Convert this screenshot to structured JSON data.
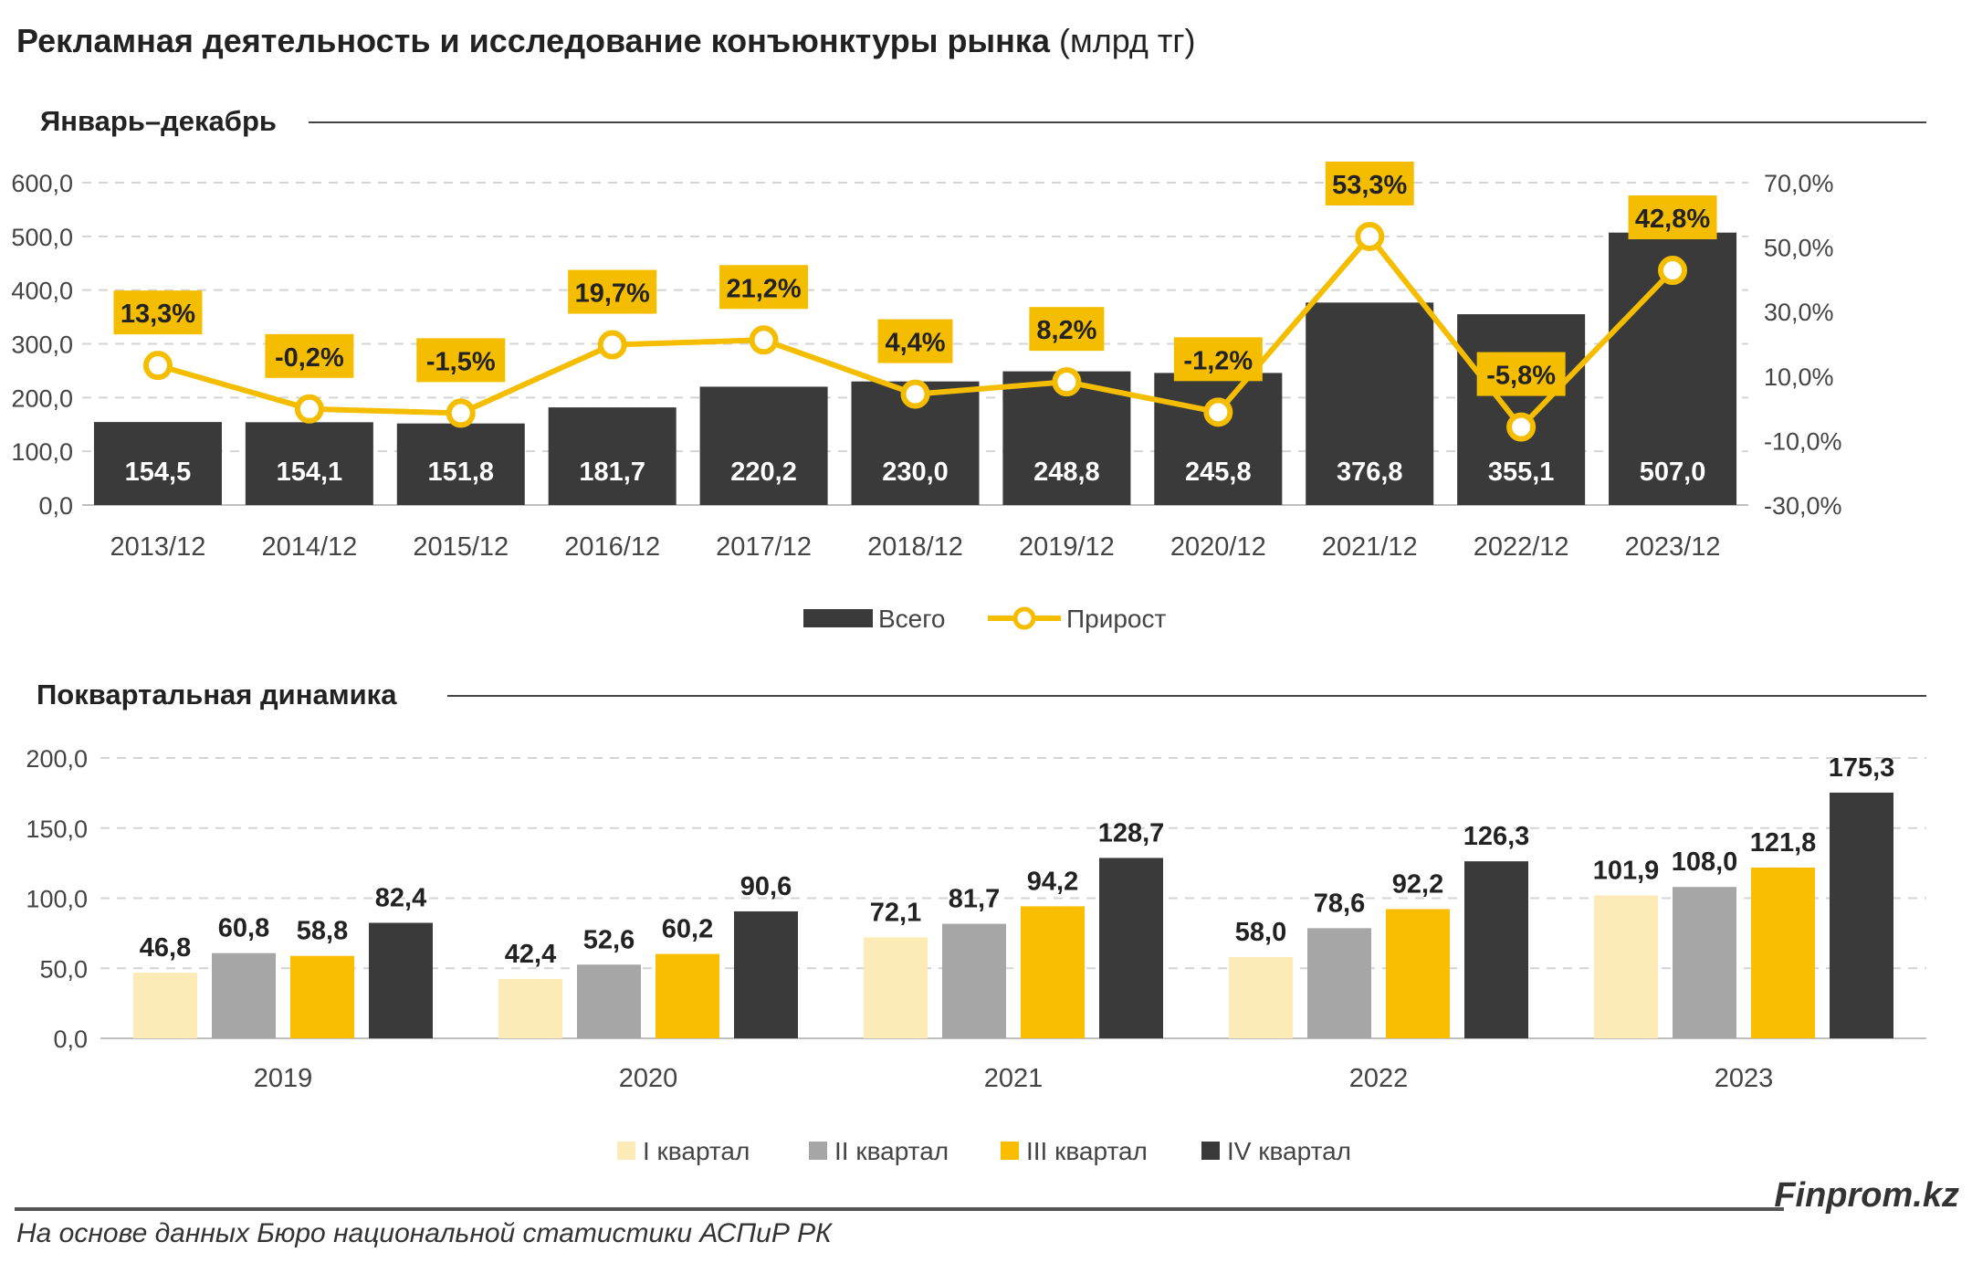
{
  "title": {
    "main": "Рекламная деятельность и исследование конъюнктуры рынка",
    "unit": "(млрд тг)"
  },
  "chart_data": [
    {
      "type": "bar",
      "subtitle": "Январь–декабрь",
      "categories": [
        "2013/12",
        "2014/12",
        "2015/12",
        "2016/12",
        "2017/12",
        "2018/12",
        "2019/12",
        "2020/12",
        "2021/12",
        "2022/12",
        "2023/12"
      ],
      "series": [
        {
          "name": "Всего",
          "type": "bar",
          "axis": "left",
          "color": "#3a3a3a",
          "values": [
            154.5,
            154.1,
            151.8,
            181.7,
            220.2,
            230.0,
            248.8,
            245.8,
            376.8,
            355.1,
            507.0
          ],
          "labels": [
            "154,5",
            "154,1",
            "151,8",
            "181,7",
            "220,2",
            "230,0",
            "248,8",
            "245,8",
            "376,8",
            "355,1",
            "507,0"
          ]
        },
        {
          "name": "Прирост",
          "type": "line",
          "axis": "right",
          "color": "#f5bd00",
          "values": [
            13.3,
            -0.2,
            -1.5,
            19.7,
            21.2,
            4.4,
            8.2,
            -1.2,
            53.3,
            -5.8,
            42.8
          ],
          "labels": [
            "13,3%",
            "-0,2%",
            "-1,5%",
            "19,7%",
            "21,2%",
            "4,4%",
            "8,2%",
            "-1,2%",
            "53,3%",
            "-5,8%",
            "42,8%"
          ]
        }
      ],
      "ylim": [
        0,
        600
      ],
      "yticks": [
        "0,0",
        "100,0",
        "200,0",
        "300,0",
        "400,0",
        "500,0",
        "600,0"
      ],
      "y2lim": [
        -30,
        70
      ],
      "y2ticks": [
        "-30,0%",
        "-10,0%",
        "10,0%",
        "30,0%",
        "50,0%",
        "70,0%"
      ],
      "legend": [
        "Всего",
        "Прирост"
      ],
      "legend_position": "bottom",
      "grid": true
    },
    {
      "type": "bar",
      "subtitle": "Поквартальная динамика",
      "categories": [
        "2019",
        "2020",
        "2021",
        "2022",
        "2023"
      ],
      "series": [
        {
          "name": "I квартал",
          "color": "#fcebb6",
          "values": [
            46.8,
            42.4,
            72.1,
            58.0,
            101.9
          ],
          "labels": [
            "46,8",
            "42,4",
            "72,1",
            "58,0",
            "101,9"
          ]
        },
        {
          "name": "II квартал",
          "color": "#a6a6a6",
          "values": [
            60.8,
            52.6,
            81.7,
            78.6,
            108.0
          ],
          "labels": [
            "60,8",
            "52,6",
            "81,7",
            "78,6",
            "108,0"
          ]
        },
        {
          "name": "III квартал",
          "color": "#fbbd00",
          "values": [
            58.8,
            60.2,
            94.2,
            92.2,
            121.8
          ],
          "labels": [
            "58,8",
            "60,2",
            "94,2",
            "92,2",
            "121,8"
          ]
        },
        {
          "name": "IV квартал",
          "color": "#3a3a3a",
          "values": [
            82.4,
            90.6,
            128.7,
            126.3,
            175.3
          ],
          "labels": [
            "82,4",
            "90,6",
            "128,7",
            "126,3",
            "175,3"
          ]
        }
      ],
      "ylim": [
        0,
        200
      ],
      "yticks": [
        "0,0",
        "50,0",
        "100,0",
        "150,0",
        "200,0"
      ],
      "legend": [
        "I квартал",
        "II квартал",
        "III квартал",
        "IV квартал"
      ],
      "legend_position": "bottom",
      "grid": true
    }
  ],
  "footer": {
    "brand": "Finprom.kz",
    "source": "На основе данных Бюро национальной статистики АСПиР РК"
  }
}
